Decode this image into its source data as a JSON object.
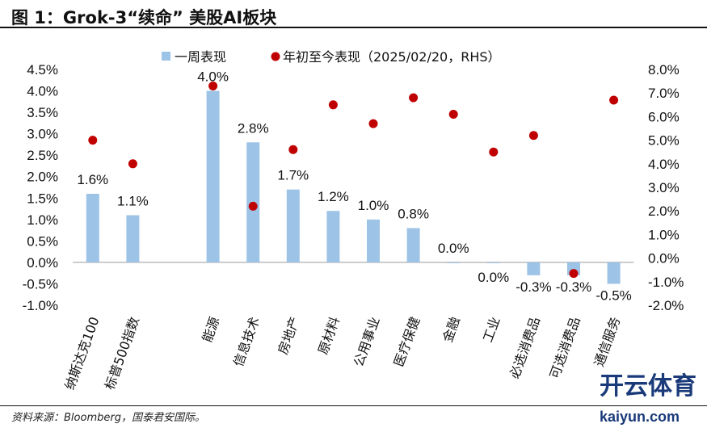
{
  "title": "图 1：Grok-3“续命” 美股AI板块",
  "footer": "资料来源：Bloomberg，国泰君安国际。",
  "watermark": {
    "brand": "开云体育",
    "url": "kaiyun.com"
  },
  "chart_data": {
    "type": "bar+scatter",
    "categories": [
      "纳斯达克100",
      "标普500指数",
      "",
      "能源",
      "信息技术",
      "房地产",
      "原材料",
      "公用事业",
      "医疗保健",
      "金融",
      "工业",
      "必选消费品",
      "可选消费品",
      "通信服务"
    ],
    "series": [
      {
        "name": "一周表现",
        "axis": "left",
        "type": "bar",
        "color": "#9dc3e6",
        "values": [
          1.6,
          1.1,
          null,
          4.0,
          2.8,
          1.7,
          1.2,
          1.0,
          0.8,
          0.0,
          0.0,
          -0.3,
          -0.3,
          -0.5
        ],
        "labels": [
          "1.6%",
          "1.1%",
          "",
          "4.0%",
          "2.8%",
          "1.7%",
          "1.2%",
          "1.0%",
          "0.8%",
          "0.0%",
          "0.0%",
          "-0.3%",
          "-0.3%",
          "-0.5%"
        ]
      },
      {
        "name": "年初至今表现（2025/02/20，RHS）",
        "axis": "right",
        "type": "scatter",
        "color": "#c00000",
        "values": [
          5.0,
          4.0,
          null,
          7.3,
          2.2,
          4.6,
          6.5,
          5.7,
          6.8,
          6.1,
          4.5,
          5.2,
          -0.65,
          6.7
        ]
      }
    ],
    "y_left": {
      "min": -1.0,
      "max": 4.5,
      "step": 0.5,
      "ticks": [
        "-1.0%",
        "-0.5%",
        "0.0%",
        "0.5%",
        "1.0%",
        "1.5%",
        "2.0%",
        "2.5%",
        "3.0%",
        "3.5%",
        "4.0%",
        "4.5%"
      ]
    },
    "y_right": {
      "min": -2.0,
      "max": 8.0,
      "step": 1.0,
      "ticks": [
        "-2.0%",
        "-1.0%",
        "0.0%",
        "1.0%",
        "2.0%",
        "3.0%",
        "4.0%",
        "5.0%",
        "6.0%",
        "7.0%",
        "8.0%"
      ]
    },
    "legend": "top",
    "grid": false
  }
}
